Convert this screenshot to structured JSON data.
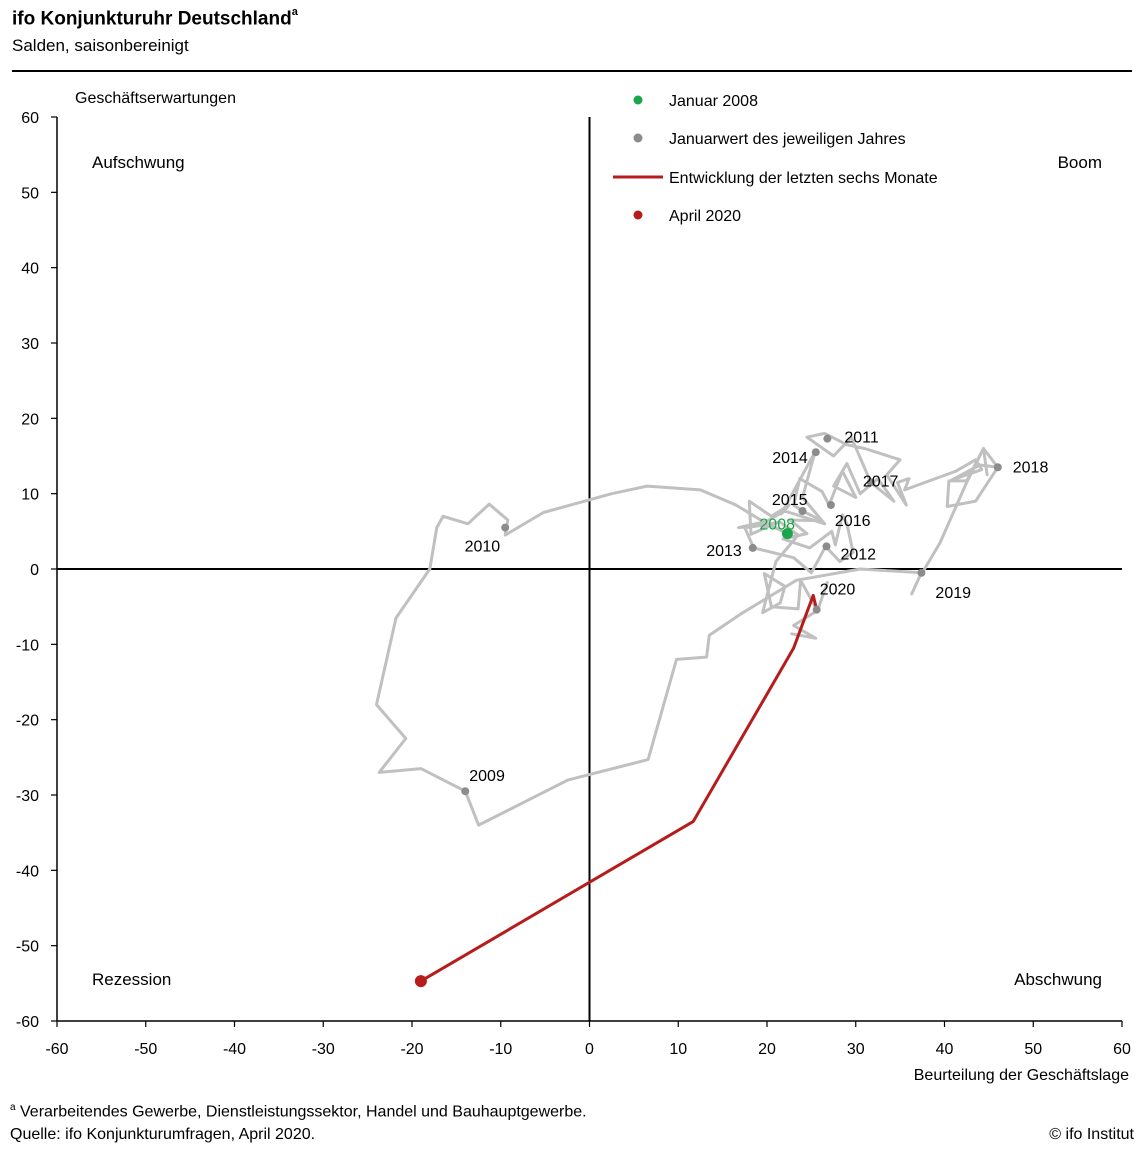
{
  "header": {
    "title": "ifo Konjunkturuhr  Deutschland",
    "title_sup": "a",
    "subtitle": "Salden, saisonbereinigt"
  },
  "footer": {
    "footnote_sup": "a",
    "footnote": "Verarbeitendes Gewerbe, Dienstleistungssektor, Handel und Bauhauptgewerbe.",
    "source": "Quelle: ifo Konjunkturumfragen, April 2020.",
    "copyright": "© ifo Institut"
  },
  "colors": {
    "history_line": "#c0c0c0",
    "january_point": "#8c8c8c",
    "start_point": "#1aa64a",
    "recent_line": "#b71c1c",
    "axis": "#000000"
  },
  "chart_data": {
    "type": "line",
    "xlabel": "Beurteilung der Geschäftslage",
    "ylabel": "Geschäftserwartungen",
    "xlim": [
      -60,
      60
    ],
    "ylim": [
      -60,
      60
    ],
    "xticks": [
      -60,
      -50,
      -40,
      -30,
      -20,
      -10,
      0,
      10,
      20,
      30,
      40,
      50,
      60
    ],
    "yticks": [
      -60,
      -50,
      -40,
      -30,
      -20,
      -10,
      0,
      10,
      20,
      30,
      40,
      50,
      60
    ],
    "grid": false,
    "legend_position": "top-center",
    "quadrants": {
      "top_left": "Aufschwung",
      "top_right": "Boom",
      "bottom_left": "Rezession",
      "bottom_right": "Abschwung"
    },
    "legend": [
      {
        "label": "Januar 2008",
        "kind": "point",
        "color": "#1aa64a"
      },
      {
        "label": "Januarwert des jeweiligen Jahres",
        "kind": "point",
        "color": "#8c8c8c"
      },
      {
        "label": "Entwicklung der letzten sechs Monate",
        "kind": "line",
        "color": "#b71c1c"
      },
      {
        "label": "April 2020",
        "kind": "point",
        "color": "#b71c1c"
      }
    ],
    "series": [
      {
        "name": "",
        "role": "history",
        "points": [
          [
            22.3,
            4.7
          ],
          [
            20,
            6
          ],
          [
            16.5,
            8.5
          ],
          [
            12.5,
            10.5
          ],
          [
            6.5,
            11
          ],
          [
            2.5,
            10
          ],
          [
            -5.2,
            7.5
          ],
          [
            -9.5,
            4.5
          ],
          [
            -9.2,
            6.5
          ],
          [
            -11.3,
            8.6
          ],
          [
            -13.7,
            6
          ],
          [
            -16.5,
            7
          ],
          [
            -17.2,
            5.5
          ],
          [
            -18,
            0
          ],
          [
            -21.8,
            -6.5
          ],
          [
            -24,
            -18
          ],
          [
            -20.7,
            -22.5
          ],
          [
            -23.7,
            -27
          ],
          [
            -19,
            -26.5
          ],
          [
            -14,
            -29.5
          ],
          [
            -12.5,
            -34
          ],
          [
            -2.4,
            -28
          ],
          [
            6.6,
            -25.3
          ],
          [
            9.8,
            -12
          ],
          [
            13.2,
            -11.7
          ],
          [
            13.5,
            -8.8
          ],
          [
            17,
            -6
          ],
          [
            23.3,
            -1.5
          ],
          [
            30.5,
            0
          ],
          [
            37.5,
            -0.5
          ],
          [
            39.5,
            3.5
          ],
          [
            42.5,
            11.5
          ],
          [
            44.4,
            16
          ],
          [
            46,
            13.5
          ],
          [
            44,
            13.8
          ],
          [
            40.8,
            11.8
          ],
          [
            44.2,
            13.2
          ],
          [
            43.5,
            14.5
          ],
          [
            41.3,
            13
          ],
          [
            35.5,
            10.5
          ],
          [
            36,
            12
          ],
          [
            34.7,
            11.5
          ],
          [
            35.7,
            8.5
          ],
          [
            33.5,
            12.5
          ],
          [
            35,
            14.5
          ],
          [
            31,
            16
          ],
          [
            29,
            16.5
          ],
          [
            26.5,
            18
          ],
          [
            24.5,
            17.5
          ],
          [
            27.5,
            15
          ],
          [
            29.5,
            17.5
          ],
          [
            31.7,
            11.5
          ],
          [
            34.3,
            9
          ],
          [
            32.5,
            12
          ],
          [
            30.5,
            10
          ],
          [
            29,
            14
          ],
          [
            27.5,
            11
          ],
          [
            30,
            9.5
          ],
          [
            28.5,
            13
          ],
          [
            27,
            8.5
          ],
          [
            26.2,
            10.3
          ],
          [
            23.7,
            12
          ],
          [
            23,
            8.5
          ],
          [
            24,
            7.7
          ],
          [
            26.2,
            6.4
          ],
          [
            22.6,
            6.5
          ],
          [
            24.5,
            4.7
          ],
          [
            21.8,
            4
          ],
          [
            24.8,
            2.8
          ],
          [
            27.3,
            5
          ],
          [
            27.7,
            3.2
          ],
          [
            28.5,
            7.2
          ],
          [
            29,
            6
          ],
          [
            29.7,
            2.2
          ],
          [
            28.2,
            1
          ],
          [
            26.6,
            3
          ],
          [
            25,
            -0.5
          ],
          [
            23,
            1.5
          ],
          [
            18.5,
            2.8
          ],
          [
            17.5,
            5.5
          ],
          [
            20.8,
            6
          ],
          [
            18.2,
            4.6
          ],
          [
            18,
            9
          ],
          [
            20.5,
            7
          ],
          [
            22.5,
            8.5
          ],
          [
            21.6,
            7.3
          ],
          [
            25.4,
            15.5
          ],
          [
            24,
            9.5
          ],
          [
            26.5,
            6
          ],
          [
            22,
            7.7
          ],
          [
            19.9,
            6.3
          ],
          [
            16.8,
            5.5
          ],
          [
            21.5,
            6.2
          ],
          [
            23.5,
            4.5
          ],
          [
            21,
            1
          ],
          [
            19.5,
            -5.8
          ],
          [
            21.5,
            -4.5
          ],
          [
            22,
            -2.3
          ],
          [
            19.7,
            -0.6
          ],
          [
            20.5,
            -5
          ],
          [
            23.5,
            -5.3
          ],
          [
            23.8,
            -1.5
          ],
          [
            25.6,
            -5.4
          ]
        ]
      },
      {
        "name": "",
        "role": "history-2020",
        "points": [
          [
            26.8,
            -1.8
          ],
          [
            25.7,
            -5.5
          ],
          [
            23,
            -7.5
          ],
          [
            25.5,
            -9.2
          ],
          [
            22.8,
            -8.6
          ]
        ]
      },
      {
        "name": "",
        "role": "history-2019",
        "points": [
          [
            37.4,
            -0.5
          ],
          [
            36.3,
            -3.3
          ]
        ]
      },
      {
        "name": "",
        "role": "history-2018",
        "points": [
          [
            46,
            13.5
          ],
          [
            43.5,
            9
          ],
          [
            40.3,
            8.3
          ],
          [
            40.5,
            11.7
          ],
          [
            42.5,
            11.7
          ],
          [
            44.4,
            16
          ],
          [
            44.8,
            12.5
          ]
        ]
      },
      {
        "name": "",
        "role": "recent",
        "points": [
          [
            25.6,
            -5.4
          ],
          [
            25.2,
            -3.5
          ],
          [
            23,
            -10.5
          ],
          [
            11.7,
            -33.5
          ],
          [
            -19,
            -54.7
          ]
        ]
      }
    ],
    "january_points": [
      {
        "label": "2008",
        "x": 22.3,
        "y": 4.7,
        "highlight": true
      },
      {
        "label": "2009",
        "x": -14,
        "y": -29.5
      },
      {
        "label": "2010",
        "x": -9.5,
        "y": 5.5
      },
      {
        "label": "2011",
        "x": 26.8,
        "y": 17.3
      },
      {
        "label": "2012",
        "x": 26.7,
        "y": 3
      },
      {
        "label": "2013",
        "x": 18.4,
        "y": 2.8
      },
      {
        "label": "2014",
        "x": 25.5,
        "y": 15.5
      },
      {
        "label": "2015",
        "x": 24,
        "y": 7.7
      },
      {
        "label": "2016",
        "x": 27.2,
        "y": 8.5
      },
      {
        "label": "2017",
        "x": 31.7,
        "y": 11.5
      },
      {
        "label": "2018",
        "x": 46,
        "y": 13.5
      },
      {
        "label": "2019",
        "x": 37.4,
        "y": -0.5
      },
      {
        "label": "2020",
        "x": 25.6,
        "y": -5.4
      }
    ],
    "end_point": {
      "label": "April 2020",
      "x": -19,
      "y": -54.7
    }
  }
}
